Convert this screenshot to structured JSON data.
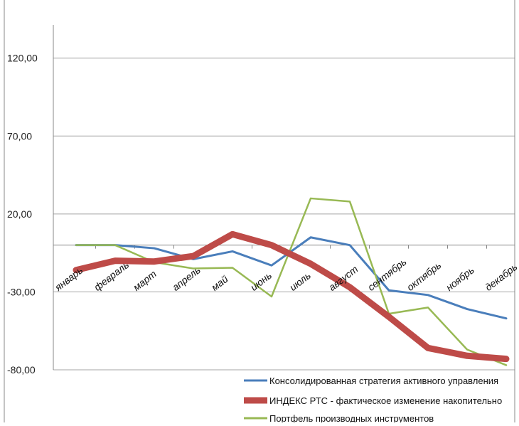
{
  "chart_data": {
    "type": "line",
    "categories": [
      "январь",
      "февраль",
      "март",
      "апрель",
      "май",
      "июнь",
      "июль",
      "август",
      "сентябрь",
      "октябрь",
      "ноябрь",
      "декабрь"
    ],
    "y_tick_labels": [
      "120,00",
      "70,00",
      "20,00",
      "-30,00",
      "-80,00"
    ],
    "y_tick_values": [
      120,
      70,
      20,
      -30,
      -80
    ],
    "ylim": [
      -80,
      155
    ],
    "grid": true,
    "legend_position": "bottom-right",
    "series": [
      {
        "name": "Консолидированная стратегия активного управления",
        "color": "#4a7ebb",
        "values": [
          0.0,
          0.0,
          -2.0,
          -9.0,
          -4.0,
          -13.0,
          5.0,
          0.0,
          -29.0,
          -32.0,
          -41.0,
          -47.0
        ]
      },
      {
        "name": "ИНДЕКС РТС - фактическое изменение накопительно",
        "color": "#be4b48",
        "values": [
          -16.0,
          -10.0,
          -10.5,
          -7.0,
          7.0,
          0.0,
          -12.0,
          -27.0,
          -46.0,
          -66.0,
          -71.0,
          -73.0
        ]
      },
      {
        "name": "Портфель производных инструментов",
        "color": "#98b954",
        "values": [
          0.0,
          0.0,
          -11.0,
          -15.0,
          -14.5,
          -33.0,
          30.0,
          28.0,
          -44.0,
          -40.0,
          -67.0,
          -77.0
        ]
      }
    ]
  }
}
